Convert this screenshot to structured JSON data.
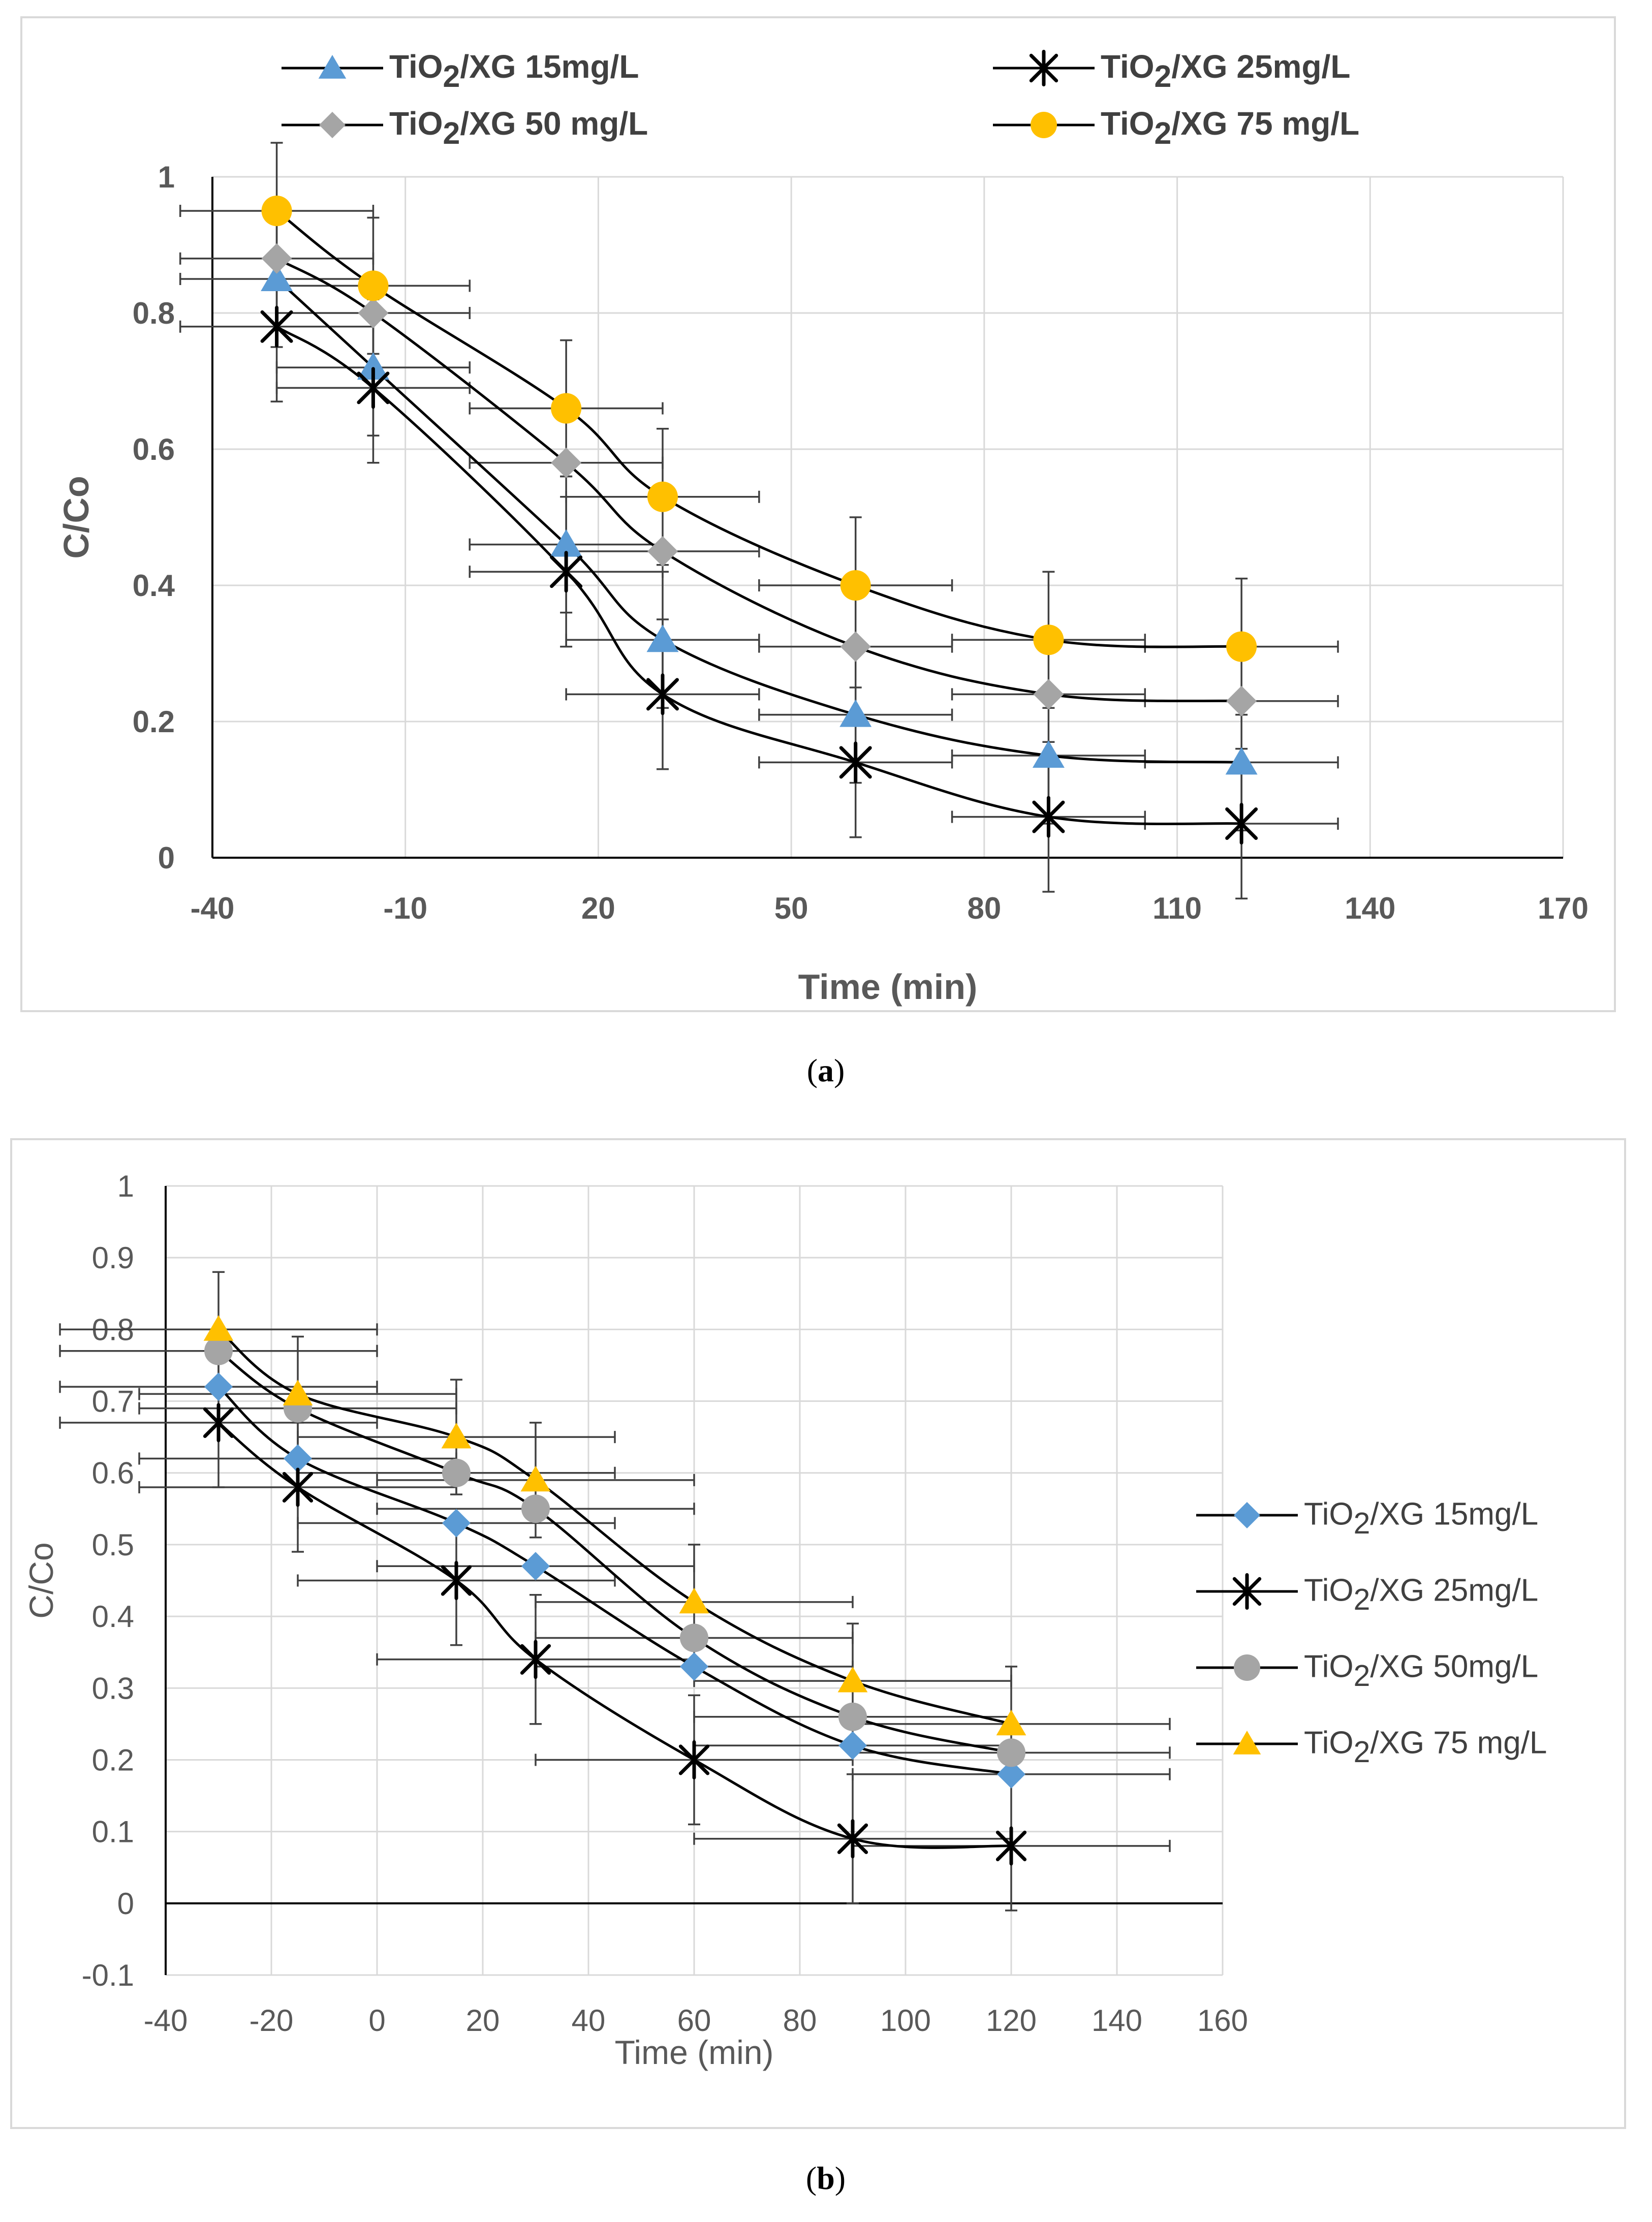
{
  "charts": {
    "a": {
      "title": "",
      "xlabel": "Time (min)",
      "ylabel": "C/Co",
      "caption_letter": "a",
      "xticks": [
        "-40",
        "-10",
        "20",
        "50",
        "80",
        "110",
        "140",
        "170"
      ],
      "yticks": [
        "0",
        "0.2",
        "0.4",
        "0.6",
        "0.8",
        "1"
      ],
      "legend": [
        {
          "prefix": "TiO",
          "sub": "2",
          "suffix": "/XG 15mg/L"
        },
        {
          "prefix": "TiO",
          "sub": "2",
          "suffix": "/XG 25mg/L"
        },
        {
          "prefix": "TiO",
          "sub": "2",
          "suffix": "/XG  50 mg/L"
        },
        {
          "prefix": "TiO",
          "sub": "2",
          "suffix": "/XG  75 mg/L"
        }
      ]
    },
    "b": {
      "title": "",
      "xlabel": "Time (min)",
      "ylabel": "C/Co",
      "caption_letter": "b",
      "xticks": [
        "-40",
        "-20",
        "0",
        "20",
        "40",
        "60",
        "80",
        "100",
        "120",
        "140",
        "160"
      ],
      "yticks": [
        "-0.1",
        "0",
        "0.1",
        "0.2",
        "0.3",
        "0.4",
        "0.5",
        "0.6",
        "0.7",
        "0.8",
        "0.9",
        "1"
      ],
      "legend": [
        {
          "prefix": "TiO",
          "sub": "2",
          "suffix": "/XG 15mg/L"
        },
        {
          "prefix": "TiO",
          "sub": "2",
          "suffix": "/XG 25mg/L"
        },
        {
          "prefix": "TiO",
          "sub": "2",
          "suffix": "/XG  50mg/L"
        },
        {
          "prefix": "TiO",
          "sub": "2",
          "suffix": "/XG  75 mg/L"
        }
      ]
    }
  },
  "colors": {
    "blue": "#5b9bd5",
    "black": "#000000",
    "gray": "#a5a5a5",
    "yellow": "#ffc000",
    "grid": "#d9d9d9",
    "errorbar": "#404040"
  },
  "chart_data": [
    {
      "type": "scatter",
      "panel": "a",
      "title": "",
      "xlabel": "Time (min)",
      "ylabel": "C/Co",
      "xlim": [
        -40,
        170
      ],
      "ylim": [
        0,
        1
      ],
      "x_error": 15,
      "series": [
        {
          "name": "TiO2/XG 15mg/L",
          "marker": "triangle",
          "color": "#5b9bd5",
          "x": [
            -30,
            -15,
            15,
            30,
            60,
            90,
            120
          ],
          "y": [
            0.85,
            0.72,
            0.46,
            0.32,
            0.21,
            0.15,
            0.14
          ],
          "yerr": [
            0.1,
            0.1,
            0.1,
            0.1,
            0.1,
            0.1,
            0.1
          ]
        },
        {
          "name": "TiO2/XG 25mg/L",
          "marker": "asterisk",
          "color": "#000000",
          "x": [
            -30,
            -15,
            15,
            30,
            60,
            90,
            120
          ],
          "y": [
            0.78,
            0.69,
            0.42,
            0.24,
            0.14,
            0.06,
            0.05
          ],
          "yerr": [
            0.11,
            0.11,
            0.11,
            0.11,
            0.11,
            0.11,
            0.11
          ]
        },
        {
          "name": "TiO2/XG  50 mg/L",
          "marker": "diamond",
          "color": "#a5a5a5",
          "x": [
            -30,
            -15,
            15,
            30,
            60,
            90,
            120
          ],
          "y": [
            0.88,
            0.8,
            0.58,
            0.45,
            0.31,
            0.24,
            0.23
          ],
          "yerr": [
            0,
            0,
            0,
            0,
            0,
            0,
            0
          ]
        },
        {
          "name": "TiO2/XG  75 mg/L",
          "marker": "circle",
          "color": "#ffc000",
          "x": [
            -30,
            -15,
            15,
            30,
            60,
            90,
            120
          ],
          "y": [
            0.95,
            0.84,
            0.66,
            0.53,
            0.4,
            0.32,
            0.31
          ],
          "yerr": [
            0.1,
            0.1,
            0.1,
            0.1,
            0.1,
            0.1,
            0.1
          ]
        }
      ]
    },
    {
      "type": "scatter",
      "panel": "b",
      "title": "",
      "xlabel": "Time (min)",
      "ylabel": "C/Co",
      "xlim": [
        -40,
        160
      ],
      "ylim": [
        -0.1,
        1
      ],
      "x_error": 30,
      "series": [
        {
          "name": "TiO2/XG 15mg/L",
          "marker": "diamond",
          "color": "#5b9bd5",
          "x": [
            -30,
            -15,
            15,
            30,
            60,
            90,
            120
          ],
          "y": [
            0.72,
            0.62,
            0.53,
            0.47,
            0.33,
            0.22,
            0.18
          ],
          "yerr": [
            0,
            0,
            0,
            0,
            0,
            0,
            0
          ]
        },
        {
          "name": "TiO2/XG 25mg/L",
          "marker": "asterisk",
          "color": "#000000",
          "x": [
            -30,
            -15,
            15,
            30,
            60,
            90,
            120
          ],
          "y": [
            0.67,
            0.58,
            0.45,
            0.34,
            0.2,
            0.09,
            0.08
          ],
          "yerr": [
            0.09,
            0.09,
            0.09,
            0.09,
            0.09,
            0.09,
            0.09
          ]
        },
        {
          "name": "TiO2/XG  50mg/L",
          "marker": "circle",
          "color": "#a5a5a5",
          "x": [
            -30,
            -15,
            15,
            30,
            60,
            90,
            120
          ],
          "y": [
            0.77,
            0.69,
            0.6,
            0.55,
            0.37,
            0.26,
            0.21
          ],
          "yerr": [
            0,
            0,
            0,
            0,
            0,
            0,
            0
          ]
        },
        {
          "name": "TiO2/XG  75 mg/L",
          "marker": "triangle",
          "color": "#ffc000",
          "x": [
            -30,
            -15,
            15,
            30,
            60,
            90,
            120
          ],
          "y": [
            0.8,
            0.71,
            0.65,
            0.59,
            0.42,
            0.31,
            0.25
          ],
          "yerr": [
            0.08,
            0.08,
            0.08,
            0.08,
            0.08,
            0.08,
            0.08
          ]
        }
      ]
    }
  ]
}
